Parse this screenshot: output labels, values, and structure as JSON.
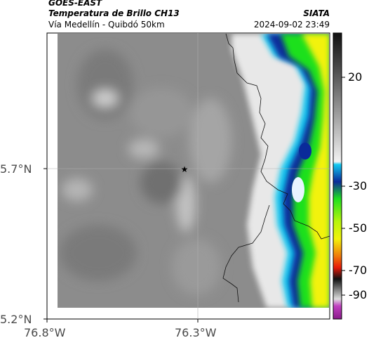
{
  "header": {
    "satellite": "GOES-EAST",
    "product": "Temperatura de Brillo CH13",
    "region": "Vía Medellín - Quibdó 50km",
    "agency": "SIATA",
    "datetime": "2024-09-02 23:49"
  },
  "map": {
    "lon_ticks": [
      "76.8°W",
      "76.3°W"
    ],
    "lat_ticks": [
      "5.7°N",
      "5.2°N"
    ],
    "marker": "star-icon"
  },
  "colorbar": {
    "ticks": [
      "20",
      "-30",
      "-50",
      "-70",
      "-90"
    ],
    "colors": {
      "gray_light": "#e6e6e6",
      "gray_dark": "#6e6e6e",
      "blue": "#0a2a9a",
      "cyan": "#12c9f0",
      "green": "#1fe01f",
      "yellow": "#f2f20a",
      "red": "#e81a0a",
      "black": "#111111",
      "magenta": "#c040c0"
    }
  }
}
